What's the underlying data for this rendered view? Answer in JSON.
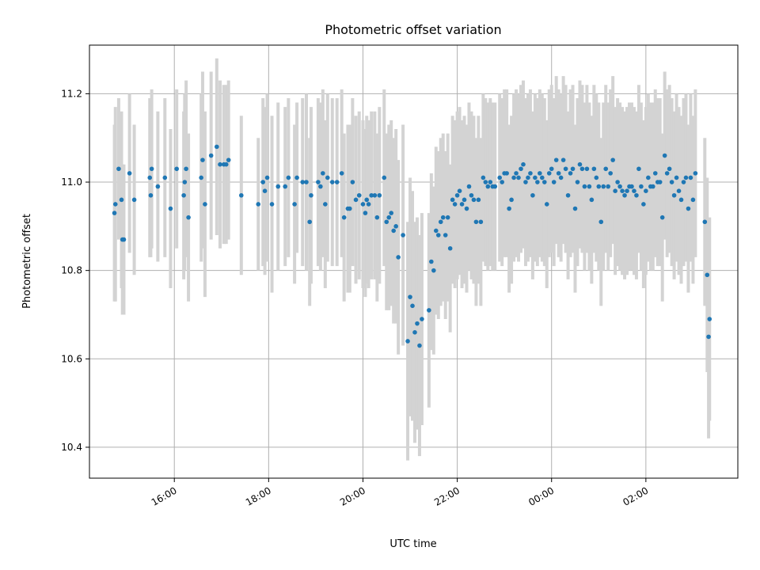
{
  "chart_data": {
    "type": "scatter",
    "title": "Photometric offset variation",
    "xlabel": "UTC time",
    "ylabel": "Photometric offset",
    "x_unit": "hours UTC (day-relative, values >24 are after midnight)",
    "xlim": [
      14.2,
      27.95
    ],
    "ylim": [
      10.33,
      11.31
    ],
    "x_ticks": [
      {
        "value": 16,
        "label": "16:00"
      },
      {
        "value": 18,
        "label": "18:00"
      },
      {
        "value": 20,
        "label": "20:00"
      },
      {
        "value": 22,
        "label": "22:00"
      },
      {
        "value": 24,
        "label": "00:00"
      },
      {
        "value": 26,
        "label": "02:00"
      }
    ],
    "y_ticks": [
      {
        "value": 10.4,
        "label": "10.4"
      },
      {
        "value": 10.6,
        "label": "10.6"
      },
      {
        "value": 10.8,
        "label": "10.8"
      },
      {
        "value": 11.0,
        "label": "11.0"
      },
      {
        "value": 11.2,
        "label": "11.2"
      }
    ],
    "grid": true,
    "colors": {
      "points": "#1f77b4",
      "errorbars": "#d3d3d3",
      "grid": "#b0b0b0"
    },
    "series": [
      {
        "points": [
          [
            14.73,
            10.93,
            0.2
          ],
          [
            14.75,
            10.95,
            0.22
          ],
          [
            14.82,
            11.03,
            0.16
          ],
          [
            14.88,
            10.96,
            0.2
          ],
          [
            14.9,
            10.87,
            0.17
          ],
          [
            14.93,
            10.87,
            0.17
          ],
          [
            15.05,
            11.02,
            0.18
          ],
          [
            15.15,
            10.96,
            0.17
          ],
          [
            15.48,
            11.01,
            0.18
          ],
          [
            15.5,
            10.97,
            0.14
          ],
          [
            15.52,
            11.03,
            0.18
          ],
          [
            15.65,
            10.99,
            0.17
          ],
          [
            15.8,
            11.01,
            0.18
          ],
          [
            15.92,
            10.94,
            0.18
          ],
          [
            16.05,
            11.03,
            0.18
          ],
          [
            16.2,
            10.97,
            0.19
          ],
          [
            16.22,
            11.0,
            0.2
          ],
          [
            16.25,
            11.03,
            0.2
          ],
          [
            16.3,
            10.92,
            0.19
          ],
          [
            16.57,
            11.01,
            0.19
          ],
          [
            16.6,
            11.05,
            0.2
          ],
          [
            16.65,
            10.95,
            0.21
          ],
          [
            16.78,
            11.06,
            0.19
          ],
          [
            16.9,
            11.08,
            0.2
          ],
          [
            16.97,
            11.04,
            0.19
          ],
          [
            17.05,
            11.04,
            0.18
          ],
          [
            17.1,
            11.04,
            0.18
          ],
          [
            17.15,
            11.05,
            0.18
          ],
          [
            17.42,
            10.97,
            0.18
          ],
          [
            17.78,
            10.95,
            0.15
          ],
          [
            17.88,
            11.0,
            0.19
          ],
          [
            17.92,
            10.98,
            0.19
          ],
          [
            17.97,
            11.01,
            0.19
          ],
          [
            18.07,
            10.95,
            0.2
          ],
          [
            18.2,
            10.99,
            0.19
          ],
          [
            18.35,
            10.99,
            0.18
          ],
          [
            18.42,
            11.01,
            0.18
          ],
          [
            18.55,
            10.95,
            0.18
          ],
          [
            18.6,
            11.01,
            0.17
          ],
          [
            18.72,
            11.0,
            0.19
          ],
          [
            18.8,
            11.0,
            0.2
          ],
          [
            18.87,
            10.91,
            0.19
          ],
          [
            18.9,
            10.97,
            0.2
          ],
          [
            19.05,
            11.0,
            0.19
          ],
          [
            19.1,
            10.99,
            0.19
          ],
          [
            19.15,
            11.02,
            0.19
          ],
          [
            19.2,
            10.95,
            0.19
          ],
          [
            19.25,
            11.01,
            0.19
          ],
          [
            19.35,
            11.0,
            0.19
          ],
          [
            19.45,
            11.0,
            0.19
          ],
          [
            19.55,
            11.02,
            0.19
          ],
          [
            19.6,
            10.92,
            0.19
          ],
          [
            19.68,
            10.94,
            0.19
          ],
          [
            19.72,
            10.94,
            0.19
          ],
          [
            19.78,
            11.0,
            0.19
          ],
          [
            19.85,
            10.96,
            0.19
          ],
          [
            19.92,
            10.97,
            0.19
          ],
          [
            20.0,
            10.95,
            0.19
          ],
          [
            20.05,
            10.93,
            0.19
          ],
          [
            20.08,
            10.96,
            0.19
          ],
          [
            20.12,
            10.95,
            0.19
          ],
          [
            20.18,
            10.97,
            0.19
          ],
          [
            20.25,
            10.97,
            0.19
          ],
          [
            20.3,
            10.92,
            0.19
          ],
          [
            20.35,
            10.97,
            0.2
          ],
          [
            20.45,
            11.01,
            0.2
          ],
          [
            20.5,
            10.91,
            0.2
          ],
          [
            20.55,
            10.92,
            0.21
          ],
          [
            20.6,
            10.93,
            0.21
          ],
          [
            20.65,
            10.89,
            0.21
          ],
          [
            20.7,
            10.9,
            0.22
          ],
          [
            20.75,
            10.83,
            0.22
          ],
          [
            20.85,
            10.88,
            0.25
          ],
          [
            20.95,
            10.64,
            0.27
          ],
          [
            21.0,
            10.74,
            0.27
          ],
          [
            21.05,
            10.72,
            0.26
          ],
          [
            21.1,
            10.66,
            0.25
          ],
          [
            21.15,
            10.68,
            0.24
          ],
          [
            21.2,
            10.63,
            0.25
          ],
          [
            21.25,
            10.69,
            0.24
          ],
          [
            21.4,
            10.71,
            0.22
          ],
          [
            21.45,
            10.82,
            0.2
          ],
          [
            21.5,
            10.8,
            0.19
          ],
          [
            21.55,
            10.89,
            0.19
          ],
          [
            21.6,
            10.88,
            0.19
          ],
          [
            21.65,
            10.91,
            0.19
          ],
          [
            21.7,
            10.92,
            0.19
          ],
          [
            21.75,
            10.88,
            0.19
          ],
          [
            21.8,
            10.92,
            0.19
          ],
          [
            21.85,
            10.85,
            0.19
          ],
          [
            21.9,
            10.96,
            0.19
          ],
          [
            21.95,
            10.95,
            0.19
          ],
          [
            22.0,
            10.97,
            0.19
          ],
          [
            22.05,
            10.98,
            0.19
          ],
          [
            22.1,
            10.95,
            0.19
          ],
          [
            22.15,
            10.96,
            0.19
          ],
          [
            22.2,
            10.94,
            0.19
          ],
          [
            22.25,
            10.99,
            0.19
          ],
          [
            22.3,
            10.97,
            0.19
          ],
          [
            22.35,
            10.96,
            0.19
          ],
          [
            22.4,
            10.91,
            0.19
          ],
          [
            22.45,
            10.96,
            0.19
          ],
          [
            22.5,
            10.91,
            0.19
          ],
          [
            22.55,
            11.01,
            0.19
          ],
          [
            22.6,
            11.0,
            0.19
          ],
          [
            22.65,
            10.99,
            0.19
          ],
          [
            22.7,
            11.0,
            0.19
          ],
          [
            22.75,
            10.99,
            0.19
          ],
          [
            22.8,
            10.99,
            0.19
          ],
          [
            22.9,
            11.01,
            0.19
          ],
          [
            22.95,
            11.0,
            0.19
          ],
          [
            23.0,
            11.02,
            0.19
          ],
          [
            23.05,
            11.02,
            0.19
          ],
          [
            23.1,
            10.94,
            0.19
          ],
          [
            23.15,
            10.96,
            0.19
          ],
          [
            23.2,
            11.01,
            0.19
          ],
          [
            23.25,
            11.02,
            0.19
          ],
          [
            23.3,
            11.01,
            0.19
          ],
          [
            23.35,
            11.03,
            0.19
          ],
          [
            23.4,
            11.04,
            0.19
          ],
          [
            23.45,
            11.0,
            0.19
          ],
          [
            23.5,
            11.01,
            0.19
          ],
          [
            23.55,
            11.02,
            0.19
          ],
          [
            23.6,
            10.97,
            0.19
          ],
          [
            23.65,
            11.01,
            0.19
          ],
          [
            23.7,
            11.0,
            0.19
          ],
          [
            23.75,
            11.02,
            0.19
          ],
          [
            23.8,
            11.01,
            0.19
          ],
          [
            23.85,
            11.0,
            0.19
          ],
          [
            23.9,
            10.95,
            0.19
          ],
          [
            23.95,
            11.02,
            0.19
          ],
          [
            24.0,
            11.03,
            0.19
          ],
          [
            24.05,
            11.0,
            0.19
          ],
          [
            24.1,
            11.05,
            0.19
          ],
          [
            24.15,
            11.02,
            0.19
          ],
          [
            24.2,
            11.01,
            0.19
          ],
          [
            24.25,
            11.05,
            0.19
          ],
          [
            24.3,
            11.03,
            0.19
          ],
          [
            24.35,
            10.97,
            0.19
          ],
          [
            24.4,
            11.02,
            0.19
          ],
          [
            24.45,
            11.03,
            0.19
          ],
          [
            24.5,
            10.94,
            0.19
          ],
          [
            24.55,
            11.0,
            0.19
          ],
          [
            24.6,
            11.04,
            0.19
          ],
          [
            24.65,
            11.03,
            0.19
          ],
          [
            24.7,
            10.99,
            0.19
          ],
          [
            24.75,
            11.03,
            0.19
          ],
          [
            24.8,
            10.99,
            0.19
          ],
          [
            24.85,
            10.96,
            0.19
          ],
          [
            24.9,
            11.03,
            0.19
          ],
          [
            24.95,
            11.01,
            0.19
          ],
          [
            25.0,
            10.99,
            0.19
          ],
          [
            25.05,
            10.91,
            0.19
          ],
          [
            25.1,
            10.99,
            0.19
          ],
          [
            25.15,
            11.03,
            0.19
          ],
          [
            25.2,
            10.99,
            0.19
          ],
          [
            25.25,
            11.02,
            0.19
          ],
          [
            25.3,
            11.05,
            0.19
          ],
          [
            25.35,
            10.98,
            0.19
          ],
          [
            25.4,
            11.0,
            0.19
          ],
          [
            25.45,
            10.99,
            0.19
          ],
          [
            25.5,
            10.98,
            0.19
          ],
          [
            25.55,
            10.97,
            0.19
          ],
          [
            25.6,
            10.98,
            0.19
          ],
          [
            25.65,
            10.99,
            0.19
          ],
          [
            25.7,
            10.99,
            0.19
          ],
          [
            25.75,
            10.98,
            0.19
          ],
          [
            25.8,
            10.97,
            0.19
          ],
          [
            25.85,
            11.03,
            0.19
          ],
          [
            25.9,
            10.99,
            0.19
          ],
          [
            25.95,
            10.95,
            0.19
          ],
          [
            26.0,
            10.98,
            0.19
          ],
          [
            26.05,
            11.01,
            0.19
          ],
          [
            26.1,
            10.99,
            0.19
          ],
          [
            26.15,
            10.99,
            0.19
          ],
          [
            26.2,
            11.02,
            0.19
          ],
          [
            26.25,
            11.0,
            0.19
          ],
          [
            26.3,
            11.0,
            0.19
          ],
          [
            26.35,
            10.92,
            0.19
          ],
          [
            26.4,
            11.06,
            0.19
          ],
          [
            26.45,
            11.02,
            0.19
          ],
          [
            26.5,
            11.03,
            0.19
          ],
          [
            26.55,
            11.0,
            0.19
          ],
          [
            26.6,
            10.97,
            0.19
          ],
          [
            26.65,
            11.01,
            0.19
          ],
          [
            26.7,
            10.98,
            0.19
          ],
          [
            26.75,
            10.96,
            0.19
          ],
          [
            26.8,
            11.0,
            0.19
          ],
          [
            26.85,
            11.01,
            0.19
          ],
          [
            26.9,
            10.94,
            0.19
          ],
          [
            26.95,
            11.01,
            0.19
          ],
          [
            27.0,
            10.96,
            0.19
          ],
          [
            27.05,
            11.02,
            0.19
          ],
          [
            27.25,
            10.91,
            0.19
          ],
          [
            27.3,
            10.79,
            0.22
          ],
          [
            27.33,
            10.65,
            0.23
          ],
          [
            27.35,
            10.69,
            0.23
          ]
        ]
      }
    ]
  }
}
